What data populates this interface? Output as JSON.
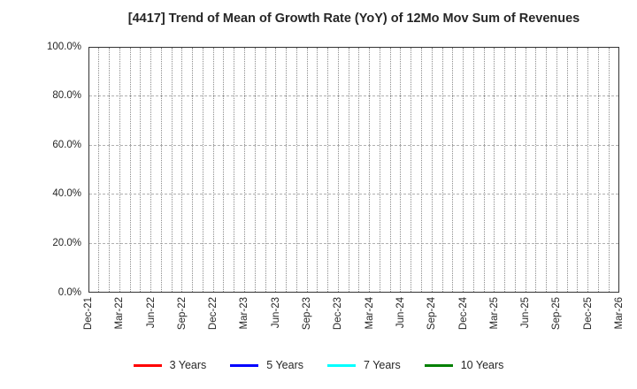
{
  "chart_data": {
    "type": "line",
    "title": "[4417]  Trend of Mean of Growth Rate (YoY) of 12Mo Mov Sum of Revenues",
    "xlabel": "",
    "ylabel": "",
    "x_tick_labels": [
      "Dec-21",
      "Mar-22",
      "Jun-22",
      "Sep-22",
      "Dec-22",
      "Mar-23",
      "Jun-23",
      "Sep-23",
      "Dec-23",
      "Mar-24",
      "Jun-24",
      "Sep-24",
      "Dec-24",
      "Mar-25",
      "Jun-25",
      "Sep-25",
      "Dec-25",
      "Mar-26"
    ],
    "y_tick_labels": [
      "0.0%",
      "20.0%",
      "40.0%",
      "60.0%",
      "80.0%",
      "100.0%"
    ],
    "ylim": [
      0,
      100
    ],
    "y_tick_values": [
      0,
      20,
      40,
      60,
      80,
      100
    ],
    "months_between_x_ticks": 3,
    "grid": true,
    "vertical_gridline_interval": "monthly",
    "legend_position": "bottom",
    "series": [
      {
        "name": "3 Years",
        "color": "#ff0000",
        "values": []
      },
      {
        "name": "5 Years",
        "color": "#0000ff",
        "values": []
      },
      {
        "name": "7 Years",
        "color": "#00ffff",
        "values": []
      },
      {
        "name": "10 Years",
        "color": "#008000",
        "values": []
      }
    ]
  }
}
